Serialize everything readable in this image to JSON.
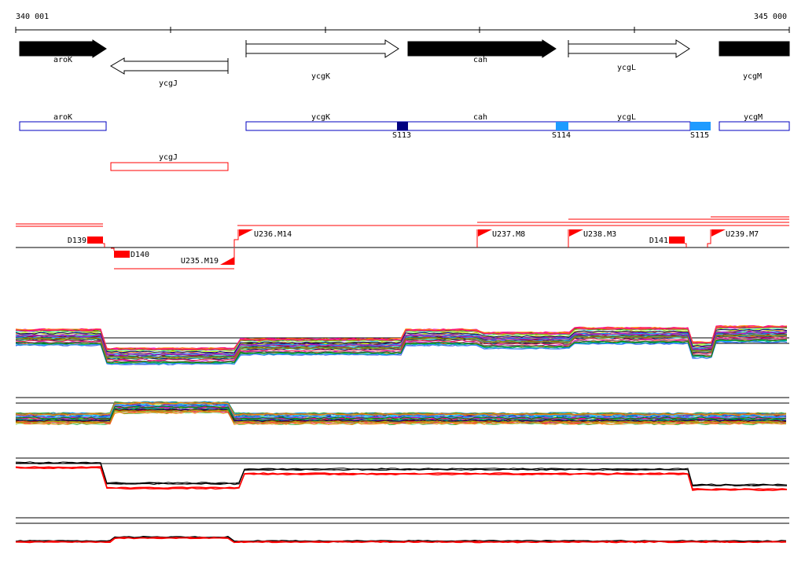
{
  "ruler": {
    "start_label": "340 001",
    "end_label": "345 000",
    "start_bp": 340001,
    "end_bp": 345000
  },
  "genes": [
    {
      "name": "aroK",
      "strand": "+",
      "fill": "#000000",
      "label_row": 1
    },
    {
      "name": "ycgJ",
      "strand": "-",
      "fill": "#ffffff",
      "label_row": 2
    },
    {
      "name": "ycgK",
      "strand": "+",
      "fill": "#ffffff",
      "label_row": 2
    },
    {
      "name": "cah",
      "strand": "+",
      "fill": "#000000",
      "label_row": 1
    },
    {
      "name": "ycgL",
      "strand": "+",
      "fill": "#ffffff",
      "label_row": 1
    },
    {
      "name": "ycgM",
      "strand": "+",
      "fill": "#000000",
      "label_row": 2
    }
  ],
  "transcripts": {
    "row1": [
      "aroK",
      "ycgK",
      "cah",
      "ycgL",
      "ycgM"
    ],
    "row2": [
      "ycgJ"
    ],
    "sites": [
      "S113",
      "S114",
      "S115"
    ],
    "site_colors": {
      "S113": "#000080",
      "S114": "#1e9bff",
      "S115": "#1e9bff"
    }
  },
  "features": {
    "forward": [
      "U236.M14",
      "U237.M8",
      "U238.M3",
      "U239.M7"
    ],
    "reverse": [
      "D139",
      "D141"
    ],
    "other": [
      "U235.M19",
      "D140"
    ]
  },
  "colors": {
    "blue_box": "#0000c0",
    "red": "#ff0000",
    "black": "#000000"
  }
}
